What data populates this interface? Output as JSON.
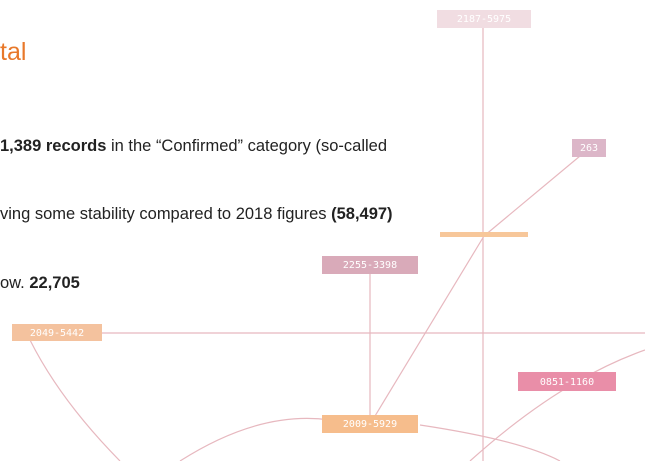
{
  "header": {
    "title": "tal"
  },
  "paragraphs": [
    {
      "runs": [
        {
          "text": "1,389 records",
          "bold": true
        },
        {
          "text": " in the “Confirmed” category (so-called",
          "bold": false
        }
      ]
    },
    {
      "runs": [
        {
          "text": "ving some stability compared to 2018 figures ",
          "bold": false
        },
        {
          "text": "(58,497)",
          "bold": true
        }
      ]
    },
    {
      "runs": [
        {
          "text": "ow. ",
          "bold": false
        },
        {
          "text": "22,705",
          "bold": true
        }
      ]
    }
  ],
  "diagram": {
    "labels": [
      "2187-5975",
      "263",
      "2255-3398",
      "2049-5442",
      "2009-5929",
      "0851-1160"
    ]
  }
}
